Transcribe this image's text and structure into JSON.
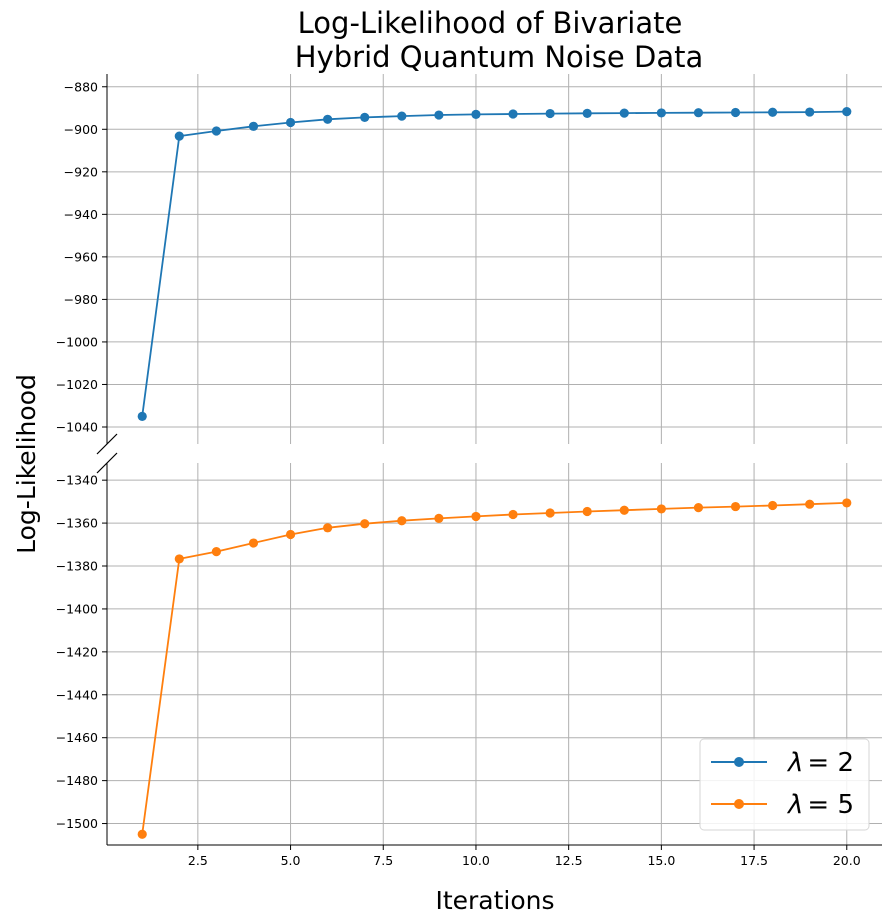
{
  "chart_data": {
    "type": "line",
    "title_lines": [
      "Log-Likelihood of Bivariate",
      "Hybrid Quantum Noise Data"
    ],
    "xlabel": "Iterations",
    "ylabel": "Log-Likelihood",
    "xlim": [
      0.05,
      20.95
    ],
    "x_ticks": [
      2.5,
      5.0,
      7.5,
      10.0,
      12.5,
      15.0,
      17.5,
      20.0
    ],
    "x_tick_labels": [
      "2.5",
      "5.0",
      "7.5",
      "10.0",
      "12.5",
      "15.0",
      "17.5",
      "20.0"
    ],
    "broken_y_axis": true,
    "grid": true,
    "legend_position": "lower-right",
    "x": [
      1,
      2,
      3,
      4,
      5,
      6,
      7,
      8,
      9,
      10,
      11,
      12,
      13,
      14,
      15,
      16,
      17,
      18,
      19,
      20
    ],
    "panels": [
      {
        "ylim": [
          -1048,
          -874
        ],
        "y_ticks": [
          -1040,
          -1020,
          -1000,
          -980,
          -960,
          -940,
          -920,
          -900,
          -880
        ],
        "series_index": 0
      },
      {
        "ylim": [
          -1510,
          -1332
        ],
        "y_ticks": [
          -1500,
          -1480,
          -1460,
          -1440,
          -1420,
          -1400,
          -1380,
          -1360,
          -1340
        ],
        "series_index": 1
      }
    ],
    "series": [
      {
        "legend_symbol": "λ",
        "legend_value": "= 2",
        "color": "#1f77b4",
        "values": [
          -1035.0,
          -903.2,
          -900.8,
          -898.6,
          -896.8,
          -895.3,
          -894.4,
          -893.8,
          -893.3,
          -893.0,
          -892.8,
          -892.6,
          -892.5,
          -892.4,
          -892.3,
          -892.2,
          -892.1,
          -892.0,
          -891.9,
          -891.7
        ]
      },
      {
        "legend_symbol": "λ",
        "legend_value": "= 5",
        "color": "#ff7f0e",
        "values": [
          -1505.0,
          -1376.7,
          -1373.3,
          -1369.3,
          -1365.3,
          -1362.2,
          -1360.3,
          -1358.9,
          -1357.8,
          -1356.9,
          -1356.0,
          -1355.3,
          -1354.6,
          -1354.0,
          -1353.4,
          -1352.8,
          -1352.3,
          -1351.8,
          -1351.2,
          -1350.6
        ]
      }
    ]
  }
}
